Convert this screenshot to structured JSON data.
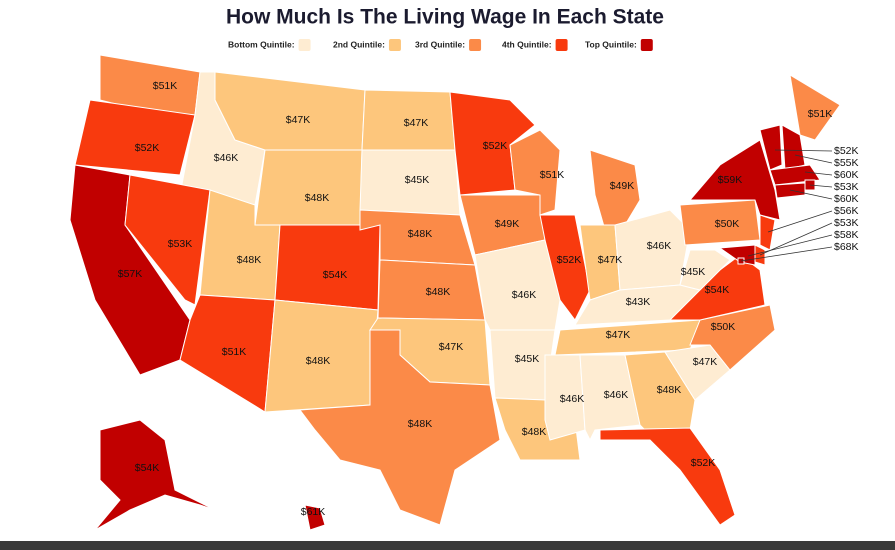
{
  "chart_data": {
    "type": "choropleth",
    "title": "How Much Is The Living Wage In Each State",
    "legend": [
      {
        "name": "Bottom Quintile:",
        "color": "#feecd2"
      },
      {
        "name": "2nd Quintile:",
        "color": "#fdc67c"
      },
      {
        "name": "3rd Quintile:",
        "color": "#fb8a48"
      },
      {
        "name": "4th Quintile:",
        "color": "#f83a0e"
      },
      {
        "name": "Top Quintile:",
        "color": "#c10000"
      }
    ],
    "values": [
      51,
      52,
      57,
      46,
      53,
      47,
      48,
      48,
      51,
      54,
      48,
      47,
      45,
      48,
      48,
      47,
      48,
      52,
      49,
      46,
      45,
      48,
      51,
      52,
      49,
      47,
      46,
      43,
      47,
      46,
      46,
      48,
      52,
      47,
      50,
      54,
      45,
      50,
      59,
      51,
      52,
      55,
      60,
      53,
      60,
      56,
      53,
      58,
      68,
      54,
      61
    ],
    "value_labels": [
      "$51K",
      "$52K",
      "$57K",
      "$46K",
      "$53K",
      "$47K",
      "$48K",
      "$48K",
      "$51K",
      "$54K",
      "$48K",
      "$47K",
      "$45K",
      "$48K",
      "$48K",
      "$47K",
      "$48K",
      "$52K",
      "$49K",
      "$46K",
      "$45K",
      "$48K",
      "$51K",
      "$52K",
      "$49K",
      "$47K",
      "$46K",
      "$43K",
      "$47K",
      "$46K",
      "$46K",
      "$48K",
      "$52K",
      "$47K",
      "$50K",
      "$54K",
      "$45K",
      "$50K",
      "$59K",
      "$51K",
      "$52K",
      "$55K",
      "$60K",
      "$53K",
      "$60K",
      "$56K",
      "$53K",
      "$58K",
      "$68K",
      "$54K",
      "$61K"
    ],
    "colors": [
      "#fb8a48",
      "#f83a0e",
      "#c10000",
      "#feecd2",
      "#f83a0e",
      "#fdc67c",
      "#fdc67c",
      "#fdc67c",
      "#f83a0e",
      "#f83a0e",
      "#fdc67c",
      "#fdc67c",
      "#feecd2",
      "#fb8a48",
      "#fb8a48",
      "#fdc67c",
      "#fb8a48",
      "#f83a0e",
      "#fb8a48",
      "#feecd2",
      "#feecd2",
      "#fdc67c",
      "#fb8a48",
      "#f83a0e",
      "#fb8a48",
      "#fdc67c",
      "#feecd2",
      "#feecd2",
      "#fdc67c",
      "#feecd2",
      "#feecd2",
      "#fdc67c",
      "#f83a0e",
      "#feecd2",
      "#fb8a48",
      "#f83a0e",
      "#feecd2",
      "#fb8a48",
      "#c10000",
      "#fb8a48",
      "#c10000",
      "#c10000",
      "#c10000",
      "#c10000",
      "#c10000",
      "#f83a0e",
      "#f83a0e",
      "#c10000",
      "#c10000",
      "#c10000",
      "#c10000"
    ]
  }
}
